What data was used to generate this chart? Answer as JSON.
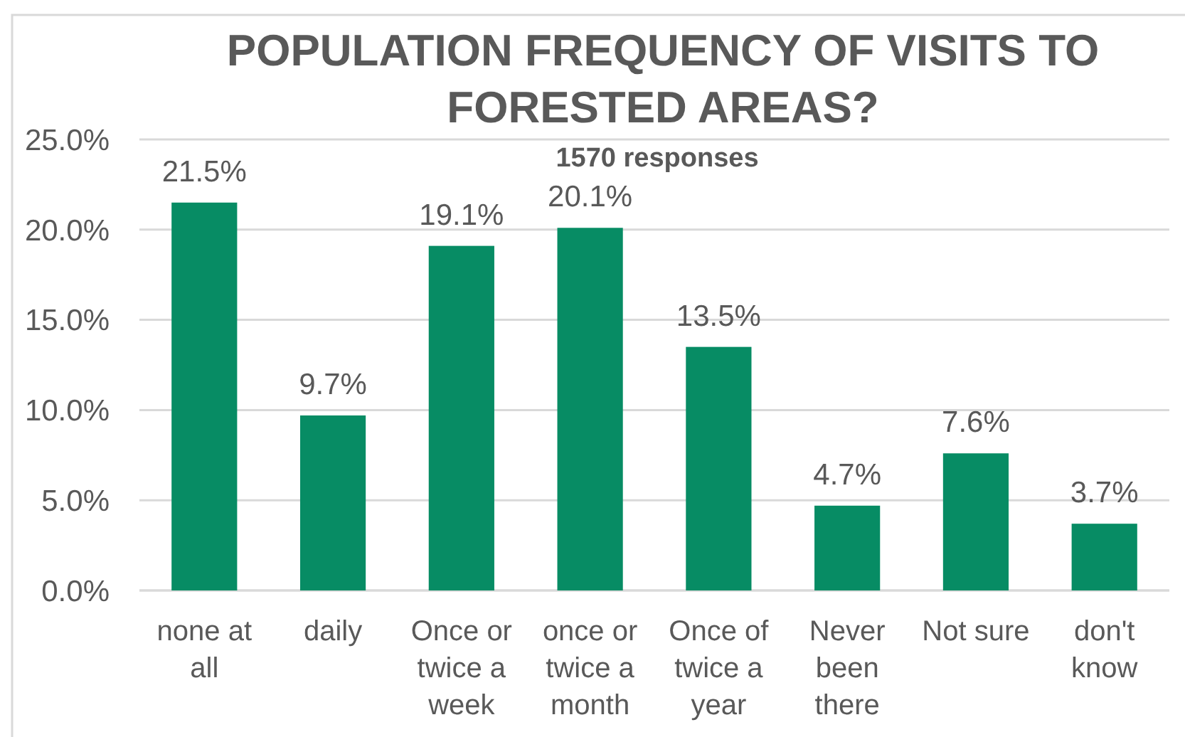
{
  "chart_data": {
    "type": "bar",
    "title": "POPULATION FREQUENCY OF VISITS TO FORESTED AREAS?",
    "subtitle": "1570 responses",
    "categories": [
      "none at all",
      "daily",
      "Once or twice a week",
      "once or twice a month",
      "Once of twice a year",
      "Never been there",
      "Not sure",
      "don't know"
    ],
    "values": [
      21.5,
      9.7,
      19.1,
      20.1,
      13.5,
      4.7,
      7.6,
      3.7
    ],
    "value_labels": [
      "21.5%",
      "9.7%",
      "19.1%",
      "20.1%",
      "13.5%",
      "4.7%",
      "7.6%",
      "3.7%"
    ],
    "color": "#078c64",
    "ylim": [
      0,
      25
    ],
    "yticks": [
      {
        "value": 0,
        "label": "0.0%"
      },
      {
        "value": 5,
        "label": "5.0%"
      },
      {
        "value": 10,
        "label": "10.0%"
      },
      {
        "value": 15,
        "label": "15.0%"
      },
      {
        "value": 20,
        "label": "20.0%"
      },
      {
        "value": 25,
        "label": "25.0%"
      }
    ],
    "grid": "y"
  }
}
